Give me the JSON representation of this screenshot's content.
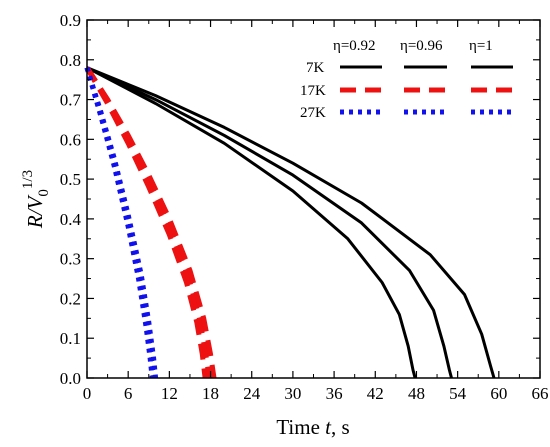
{
  "chart_data": {
    "type": "line",
    "xlabel_prefix": "Time ",
    "xlabel_var": "t",
    "xlabel_suffix": ", s",
    "ylabel_var": "R/V",
    "ylabel_sub": "0",
    "ylabel_sup": "1/3",
    "xlim": [
      0,
      66
    ],
    "ylim": [
      0,
      0.9
    ],
    "xticks": [
      0,
      6,
      12,
      18,
      24,
      30,
      36,
      42,
      48,
      54,
      60,
      66
    ],
    "yticks": [
      0.0,
      0.1,
      0.2,
      0.3,
      0.4,
      0.5,
      0.6,
      0.7,
      0.8,
      0.9
    ],
    "xtick_labels": [
      "0",
      "6",
      "12",
      "18",
      "24",
      "30",
      "36",
      "42",
      "48",
      "54",
      "60",
      "66"
    ],
    "ytick_labels": [
      "0.0",
      "0.1",
      "0.2",
      "0.3",
      "0.4",
      "0.5",
      "0.6",
      "0.7",
      "0.8",
      "0.9"
    ],
    "grid": false,
    "legend": {
      "placement": "top-right",
      "columns": [
        "η=0.92",
        "η=0.96",
        "η=1"
      ],
      "rows": [
        "7K",
        "17K",
        "27K"
      ]
    },
    "colors": {
      "7K": "#000000",
      "17K": "#ee1111",
      "27K": "#1111ee"
    },
    "dash_styles": {
      "7K": "solid",
      "17K": "dash",
      "27K": "dot"
    },
    "series": [
      {
        "group": "7K",
        "eta": "η=0.92",
        "x": [
          0,
          10,
          20,
          30,
          38,
          43,
          45.5,
          46.8,
          47.5,
          47.8
        ],
        "y": [
          0.78,
          0.69,
          0.59,
          0.47,
          0.35,
          0.24,
          0.16,
          0.08,
          0.02,
          0.0
        ]
      },
      {
        "group": "7K",
        "eta": "η=0.96",
        "x": [
          0,
          10,
          20,
          30,
          40,
          47,
          50.5,
          52,
          52.8,
          53.1
        ],
        "y": [
          0.78,
          0.7,
          0.61,
          0.51,
          0.39,
          0.27,
          0.17,
          0.08,
          0.02,
          0.0
        ]
      },
      {
        "group": "7K",
        "eta": "η=1",
        "x": [
          0,
          10,
          20,
          30,
          40,
          50,
          55,
          57.5,
          58.8,
          59.3
        ],
        "y": [
          0.78,
          0.71,
          0.63,
          0.54,
          0.44,
          0.31,
          0.21,
          0.11,
          0.03,
          0.0
        ]
      },
      {
        "group": "17K",
        "eta": "η=0.92",
        "x": [
          0,
          3,
          6,
          9,
          12,
          14.5,
          16,
          16.8,
          17.2
        ],
        "y": [
          0.78,
          0.69,
          0.59,
          0.48,
          0.36,
          0.24,
          0.14,
          0.06,
          0.0
        ]
      },
      {
        "group": "17K",
        "eta": "η=0.96",
        "x": [
          0,
          3,
          6,
          9,
          12,
          15,
          16.5,
          17.4,
          17.8
        ],
        "y": [
          0.78,
          0.7,
          0.6,
          0.5,
          0.38,
          0.24,
          0.14,
          0.05,
          0.0
        ]
      },
      {
        "group": "17K",
        "eta": "η=1",
        "x": [
          0,
          3,
          6,
          9,
          12,
          15,
          17,
          18,
          18.5
        ],
        "y": [
          0.78,
          0.7,
          0.61,
          0.51,
          0.4,
          0.27,
          0.15,
          0.06,
          0.0
        ]
      },
      {
        "group": "27K",
        "eta": "η=0.92",
        "x": [
          0,
          2,
          4,
          6,
          7.5,
          8.6,
          9.2,
          9.5
        ],
        "y": [
          0.78,
          0.66,
          0.53,
          0.38,
          0.25,
          0.13,
          0.05,
          0.0
        ]
      },
      {
        "group": "27K",
        "eta": "η=0.96",
        "x": [
          0,
          2,
          4,
          6,
          7.7,
          8.8,
          9.4,
          9.7
        ],
        "y": [
          0.78,
          0.66,
          0.54,
          0.39,
          0.25,
          0.13,
          0.05,
          0.0
        ]
      },
      {
        "group": "27K",
        "eta": "η=1",
        "x": [
          0,
          2,
          4,
          6,
          7.9,
          9.0,
          9.7,
          10.0
        ],
        "y": [
          0.78,
          0.67,
          0.55,
          0.41,
          0.26,
          0.14,
          0.05,
          0.0
        ]
      }
    ]
  }
}
